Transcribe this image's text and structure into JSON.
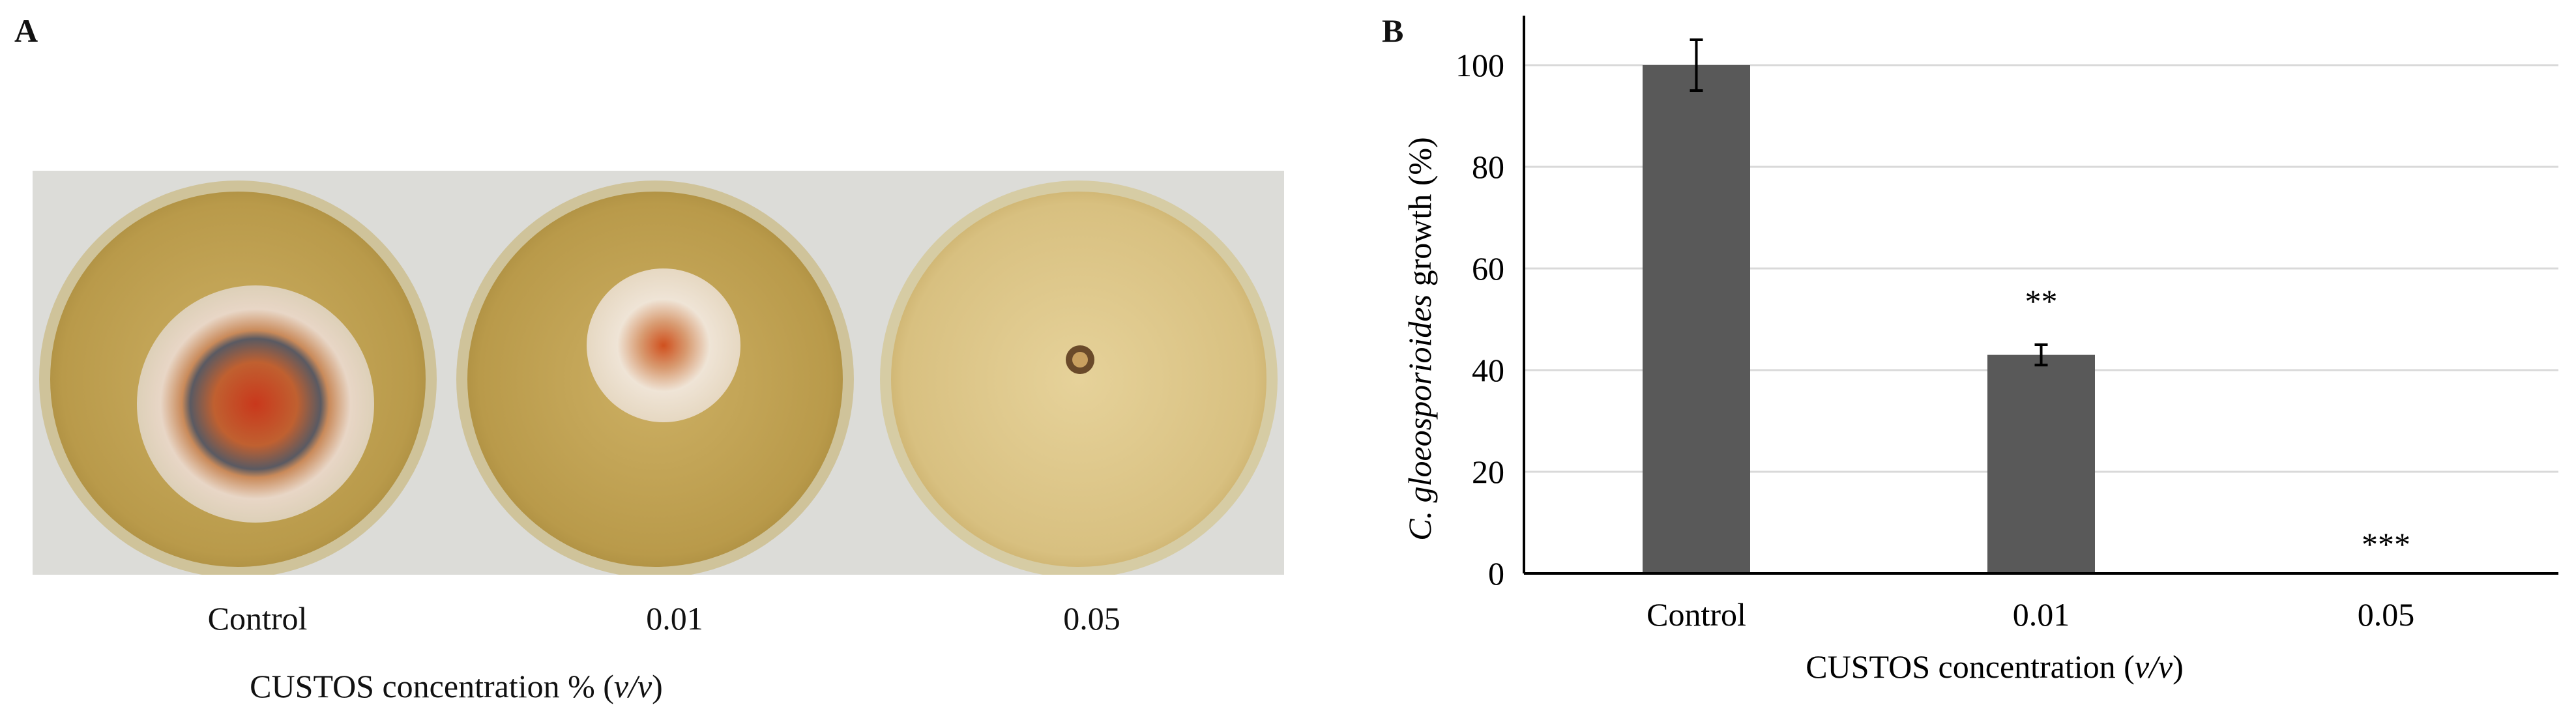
{
  "panel_a": {
    "letter": "A",
    "plates": [
      {
        "label": "Control",
        "color": "#c96a3a"
      },
      {
        "label": "0.01",
        "color": "#d7733f"
      },
      {
        "label": "0.05",
        "color": "#6a4a2a"
      }
    ],
    "xlabel_main": "CUSTOS concentration % (",
    "xlabel_italic": "v/v",
    "xlabel_end": ")"
  },
  "panel_b": {
    "letter": "B",
    "ylabel_italic": "C. gloeosporioides",
    "ylabel_rest": " growth (%)",
    "xlabel_main": "CUSTOS concentration (",
    "xlabel_italic": "v/v",
    "xlabel_end": ")"
  },
  "colors": {
    "bar": "#595959",
    "agar": "#c9ad5c",
    "plate_rim": "#d8cfa8",
    "photo_bg": "#d9d9d6",
    "grid": "#d9d9d9"
  },
  "chart_data": {
    "type": "bar",
    "categories": [
      "Control",
      "0.01",
      "0.05"
    ],
    "values": [
      100,
      43,
      0
    ],
    "errors": [
      5,
      2,
      0
    ],
    "significance": [
      "",
      "**",
      "***"
    ],
    "ylim": [
      0,
      100
    ],
    "yticks": [
      0,
      20,
      40,
      60,
      80,
      100
    ],
    "grid": true
  }
}
